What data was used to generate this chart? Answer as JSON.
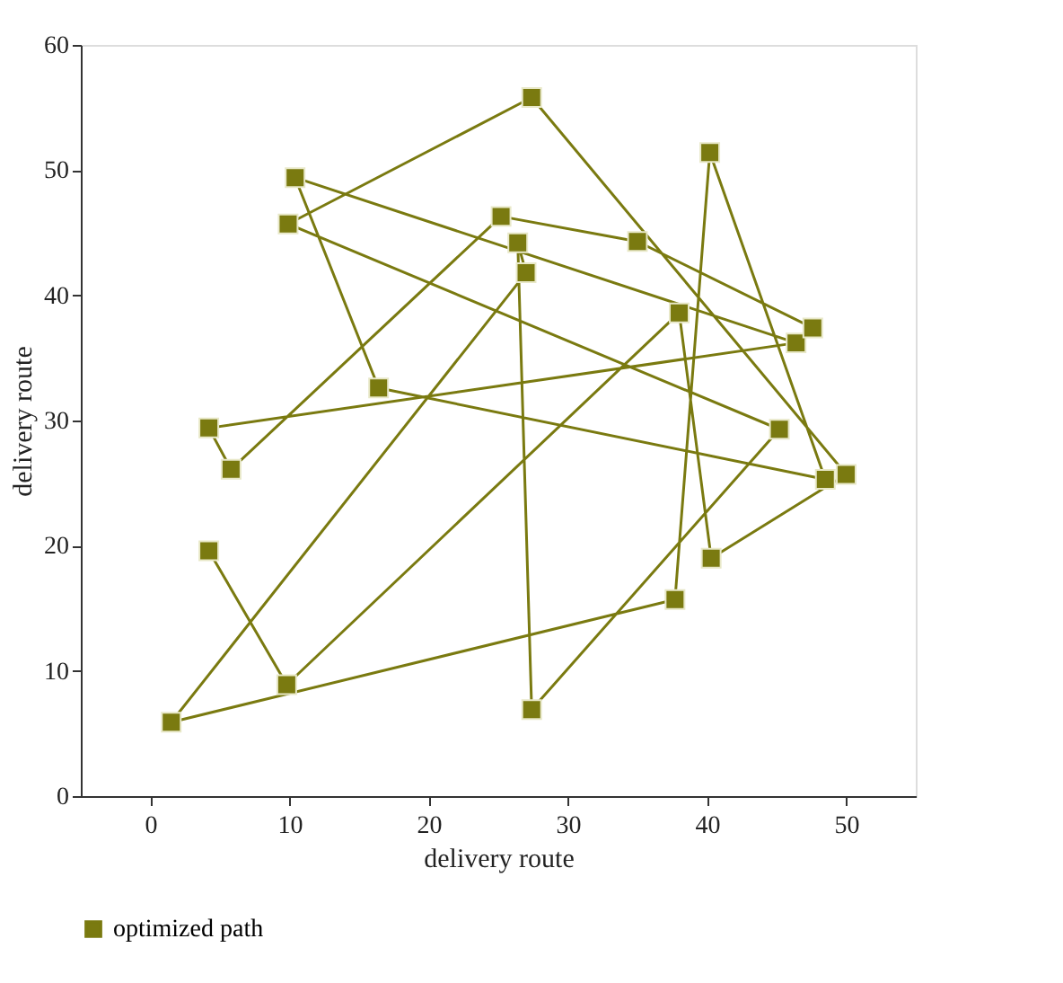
{
  "chart_data": {
    "type": "line",
    "xlabel": "delivery route",
    "ylabel": "delivery route",
    "x": [
      4.2,
      9.8,
      38.0,
      40.3,
      50.0,
      27.4,
      9.9,
      45.2,
      27.4,
      26.4,
      27.0,
      1.5,
      37.7,
      40.2,
      48.5,
      16.4,
      10.4,
      46.4,
      4.2,
      5.8,
      25.2,
      35.0,
      47.6
    ],
    "series": [
      {
        "name": "optimized path",
        "color": "#7a7a10",
        "values": [
          19.6,
          8.9,
          38.6,
          19.0,
          25.7,
          55.8,
          45.7,
          29.3,
          6.9,
          44.2,
          41.8,
          5.9,
          15.7,
          51.4,
          25.3,
          32.6,
          49.4,
          36.2,
          29.4,
          26.1,
          46.3,
          44.3,
          37.4
        ]
      }
    ],
    "xlim": [
      -5,
      55
    ],
    "ylim": [
      0,
      60
    ],
    "xticks": [
      0,
      10,
      20,
      30,
      40,
      50
    ],
    "yticks": [
      0,
      10,
      20,
      30,
      40,
      50,
      60
    ],
    "marker": "square",
    "line_style": "solid",
    "grid": false,
    "legend": "bottom left"
  }
}
